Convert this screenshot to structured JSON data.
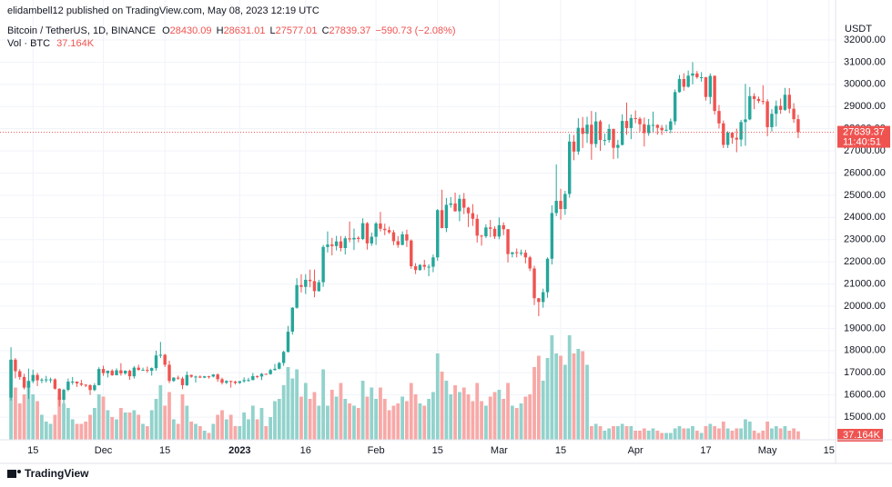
{
  "chart_data": {
    "type": "candlestick",
    "publisher_line": "elidambell12 published on TradingView.com, May 08, 2023 12:19 UTC",
    "symbol": "Bitcoin / TetherUS, 1D, BINANCE",
    "ohlc_keys": [
      "O",
      "H",
      "L",
      "C"
    ],
    "change": {
      "value": -590.73,
      "label": "−590.73"
    },
    "change_pct": {
      "value": -2.08,
      "label": "(−2.08%)"
    },
    "volume_name": "Vol · BTC",
    "last_volume_label": "37.164K",
    "currency": "USDT",
    "countdown": "11:40:51",
    "brand": "TradingView",
    "up_color": "#26a69a",
    "down_color": "#ef5350",
    "up_volume_color": "#92d2cc",
    "down_volume_color": "#f7a9a7",
    "grid": true,
    "ylim": [
      13980,
      32900
    ],
    "yticks": [
      {
        "value": 15000,
        "label": "15000.00"
      },
      {
        "value": 16000,
        "label": "16000.00"
      },
      {
        "value": 17000,
        "label": "17000.00"
      },
      {
        "value": 18000,
        "label": "18000.00"
      },
      {
        "value": 19000,
        "label": "19000.00"
      },
      {
        "value": 20000,
        "label": "20000.00"
      },
      {
        "value": 21000,
        "label": "21000.00"
      },
      {
        "value": 22000,
        "label": "22000.00"
      },
      {
        "value": 23000,
        "label": "23000.00"
      },
      {
        "value": 24000,
        "label": "24000.00"
      },
      {
        "value": 25000,
        "label": "25000.00"
      },
      {
        "value": 26000,
        "label": "26000.00"
      },
      {
        "value": 27000,
        "label": "27000.00"
      },
      {
        "value": 28000,
        "label": "28000.00"
      },
      {
        "value": 29000,
        "label": "29000.00"
      },
      {
        "value": 30000,
        "label": "30000.00"
      },
      {
        "value": 31000,
        "label": "31000.00"
      },
      {
        "value": 32000,
        "label": "32000.00"
      }
    ],
    "xlim": [
      -2.5,
      187.5
    ],
    "xticks": [
      {
        "value": 5,
        "label": "15"
      },
      {
        "value": 21,
        "label": "Dec"
      },
      {
        "value": 35,
        "label": "15"
      },
      {
        "value": 52,
        "label": "2023",
        "bold": true
      },
      {
        "value": 67,
        "label": "16"
      },
      {
        "value": 83,
        "label": "Feb"
      },
      {
        "value": 97,
        "label": "15"
      },
      {
        "value": 111,
        "label": "Mar"
      },
      {
        "value": 125,
        "label": "15"
      },
      {
        "value": 142,
        "label": "Apr"
      },
      {
        "value": 158,
        "label": "17"
      },
      {
        "value": 172,
        "label": "May"
      },
      {
        "value": 186,
        "label": "15"
      }
    ],
    "candles": [
      [
        15880,
        18150,
        15750,
        17590
      ],
      [
        17590,
        17660,
        16750,
        17070
      ],
      [
        17070,
        17160,
        16680,
        16810
      ],
      [
        16810,
        16950,
        16250,
        16330
      ],
      [
        16330,
        17190,
        15820,
        16620
      ],
      [
        16620,
        17140,
        16530,
        16900
      ],
      [
        16900,
        17000,
        16400,
        16660
      ],
      [
        16660,
        16760,
        16530,
        16690
      ],
      [
        16690,
        16860,
        16560,
        16700
      ],
      [
        16700,
        16780,
        16540,
        16700
      ],
      [
        16700,
        16750,
        16240,
        16280
      ],
      [
        16280,
        16300,
        15480,
        15780
      ],
      [
        15780,
        16280,
        15620,
        16230
      ],
      [
        16230,
        16740,
        16170,
        16600
      ],
      [
        16600,
        16810,
        16460,
        16600
      ],
      [
        16600,
        16610,
        16360,
        16520
      ],
      [
        16520,
        16680,
        16400,
        16460
      ],
      [
        16460,
        16490,
        16350,
        16440
      ],
      [
        16440,
        16480,
        16000,
        16220
      ],
      [
        16220,
        16530,
        16170,
        16440
      ],
      [
        16440,
        17250,
        16430,
        17170
      ],
      [
        17170,
        17320,
        16860,
        16980
      ],
      [
        16980,
        17100,
        16790,
        17090
      ],
      [
        17090,
        17160,
        16860,
        16890
      ],
      [
        16890,
        17200,
        16880,
        17110
      ],
      [
        17110,
        17430,
        16870,
        16970
      ],
      [
        16970,
        17110,
        16910,
        17090
      ],
      [
        17090,
        17140,
        16680,
        16840
      ],
      [
        16840,
        17300,
        16740,
        17230
      ],
      [
        17230,
        17360,
        17090,
        17130
      ],
      [
        17130,
        17230,
        17120,
        17130
      ],
      [
        17130,
        17280,
        17000,
        17090
      ],
      [
        17090,
        17240,
        16870,
        17210
      ],
      [
        17210,
        18000,
        17090,
        17780
      ],
      [
        17780,
        18390,
        17660,
        17810
      ],
      [
        17810,
        17850,
        17260,
        17360
      ],
      [
        17360,
        17540,
        16530,
        16630
      ],
      [
        16630,
        16800,
        16590,
        16780
      ],
      [
        16780,
        16870,
        16680,
        16740
      ],
      [
        16740,
        16820,
        16260,
        16440
      ],
      [
        16440,
        17060,
        16400,
        16900
      ],
      [
        16900,
        16920,
        16770,
        16820
      ],
      [
        16820,
        16870,
        16560,
        16830
      ],
      [
        16830,
        16880,
        16760,
        16780
      ],
      [
        16780,
        16860,
        16760,
        16840
      ],
      [
        16840,
        16860,
        16740,
        16830
      ],
      [
        16830,
        16940,
        16790,
        16920
      ],
      [
        16920,
        16970,
        16590,
        16710
      ],
      [
        16710,
        16780,
        16470,
        16550
      ],
      [
        16550,
        16660,
        16490,
        16630
      ],
      [
        16630,
        16640,
        16330,
        16600
      ],
      [
        16600,
        16640,
        16470,
        16540
      ],
      [
        16540,
        16630,
        16500,
        16620
      ],
      [
        16620,
        16790,
        16550,
        16670
      ],
      [
        16670,
        16770,
        16600,
        16670
      ],
      [
        16670,
        16990,
        16660,
        16850
      ],
      [
        16850,
        16880,
        16750,
        16830
      ],
      [
        16830,
        16990,
        16670,
        16950
      ],
      [
        16950,
        16960,
        16910,
        16940
      ],
      [
        16940,
        17180,
        16910,
        17120
      ],
      [
        17120,
        17400,
        17100,
        17180
      ],
      [
        17180,
        17490,
        17150,
        17440
      ],
      [
        17440,
        17990,
        17310,
        17940
      ],
      [
        17940,
        19110,
        17910,
        18850
      ],
      [
        18850,
        19960,
        18720,
        19930
      ],
      [
        19930,
        21260,
        19890,
        20950
      ],
      [
        20950,
        21440,
        20620,
        20870
      ],
      [
        20870,
        21440,
        20550,
        21190
      ],
      [
        21190,
        21650,
        20850,
        21130
      ],
      [
        21130,
        21650,
        20400,
        20680
      ],
      [
        20680,
        21190,
        20650,
        21080
      ],
      [
        21080,
        22760,
        20870,
        22670
      ],
      [
        22670,
        23370,
        22420,
        22780
      ],
      [
        22780,
        23080,
        22290,
        22710
      ],
      [
        22710,
        23170,
        22510,
        22920
      ],
      [
        22920,
        23160,
        22470,
        22620
      ],
      [
        22620,
        23160,
        22330,
        23060
      ],
      [
        23060,
        23820,
        22880,
        23010
      ],
      [
        23010,
        23500,
        22530,
        23080
      ],
      [
        23080,
        23160,
        22880,
        23030
      ],
      [
        23030,
        23960,
        22980,
        23740
      ],
      [
        23740,
        23790,
        22550,
        22830
      ],
      [
        22830,
        23320,
        22720,
        23130
      ],
      [
        23130,
        23800,
        22760,
        23730
      ],
      [
        23730,
        24250,
        23370,
        23490
      ],
      [
        23490,
        23720,
        23200,
        23430
      ],
      [
        23430,
        23590,
        23260,
        23330
      ],
      [
        23330,
        23440,
        22750,
        22930
      ],
      [
        22930,
        23160,
        22630,
        22760
      ],
      [
        22760,
        23370,
        22750,
        23240
      ],
      [
        23240,
        23450,
        22670,
        22960
      ],
      [
        22960,
        23010,
        21690,
        21800
      ],
      [
        21800,
        21940,
        21450,
        21630
      ],
      [
        21630,
        21900,
        21600,
        21860
      ],
      [
        21860,
        22090,
        21630,
        21780
      ],
      [
        21780,
        21890,
        21350,
        21780
      ],
      [
        21780,
        22330,
        21530,
        22200
      ],
      [
        22200,
        24380,
        22050,
        24330
      ],
      [
        24330,
        25250,
        23510,
        23520
      ],
      [
        23520,
        24880,
        23340,
        24570
      ],
      [
        24570,
        24920,
        24440,
        24630
      ],
      [
        24630,
        25120,
        24260,
        24280
      ],
      [
        24280,
        25020,
        23830,
        24840
      ],
      [
        24840,
        25100,
        24150,
        24440
      ],
      [
        24440,
        24480,
        23570,
        24190
      ],
      [
        24190,
        24600,
        23620,
        23940
      ],
      [
        23940,
        24130,
        22870,
        23180
      ],
      [
        23180,
        23220,
        22730,
        23150
      ],
      [
        23150,
        23690,
        23070,
        23550
      ],
      [
        23550,
        23890,
        23110,
        23490
      ],
      [
        23490,
        23600,
        23030,
        23140
      ],
      [
        23140,
        24000,
        23020,
        23650
      ],
      [
        23650,
        23780,
        23200,
        23470
      ],
      [
        23470,
        23480,
        21970,
        22350
      ],
      [
        22350,
        22440,
        22200,
        22430
      ],
      [
        22430,
        22600,
        22200,
        22410
      ],
      [
        22410,
        22550,
        22280,
        22410
      ],
      [
        22410,
        22540,
        21930,
        22200
      ],
      [
        22200,
        22270,
        21580,
        21700
      ],
      [
        21700,
        21820,
        20050,
        20360
      ],
      [
        20360,
        20370,
        19550,
        20190
      ],
      [
        20190,
        20790,
        19930,
        20630
      ],
      [
        20630,
        22200,
        20380,
        22140
      ],
      [
        22140,
        24550,
        21880,
        24200
      ],
      [
        24200,
        26390,
        24060,
        24750
      ],
      [
        24750,
        25290,
        23900,
        24380
      ],
      [
        24380,
        25200,
        24120,
        25060
      ],
      [
        25060,
        27760,
        24890,
        27420
      ],
      [
        27420,
        27720,
        26580,
        26970
      ],
      [
        26970,
        28470,
        26830,
        28040
      ],
      [
        28040,
        28530,
        27130,
        27770
      ],
      [
        27770,
        28540,
        27360,
        28180
      ],
      [
        28180,
        28800,
        26600,
        27310
      ],
      [
        27310,
        28750,
        27150,
        28330
      ],
      [
        28330,
        28400,
        27000,
        27490
      ],
      [
        27490,
        27780,
        27250,
        27490
      ],
      [
        27490,
        28200,
        27370,
        27990
      ],
      [
        27990,
        28000,
        26630,
        27140
      ],
      [
        27140,
        27500,
        26660,
        27270
      ],
      [
        27270,
        28650,
        27240,
        28350
      ],
      [
        28350,
        29180,
        27720,
        28030
      ],
      [
        28030,
        28640,
        27530,
        28480
      ],
      [
        28480,
        28820,
        28250,
        28450
      ],
      [
        28450,
        28530,
        27870,
        28200
      ],
      [
        28200,
        28500,
        27200,
        27800
      ],
      [
        27800,
        28440,
        27680,
        28170
      ],
      [
        28170,
        28770,
        27810,
        28170
      ],
      [
        28170,
        28200,
        27730,
        28040
      ],
      [
        28040,
        28170,
        27720,
        27930
      ],
      [
        27930,
        28180,
        27880,
        27950
      ],
      [
        27950,
        28460,
        27800,
        28330
      ],
      [
        28330,
        29770,
        28170,
        29650
      ],
      [
        29650,
        30420,
        29620,
        30240
      ],
      [
        30240,
        30500,
        29710,
        29890
      ],
      [
        29890,
        30620,
        29850,
        30390
      ],
      [
        30390,
        31000,
        30000,
        30490
      ],
      [
        30490,
        30600,
        30250,
        30320
      ],
      [
        30320,
        30550,
        30120,
        30320
      ],
      [
        30320,
        30330,
        29270,
        29430
      ],
      [
        29430,
        30490,
        29110,
        30380
      ],
      [
        30380,
        30410,
        28640,
        28800
      ],
      [
        28800,
        29070,
        28010,
        28240
      ],
      [
        28240,
        28370,
        27130,
        27270
      ],
      [
        27270,
        27890,
        27130,
        27820
      ],
      [
        27820,
        27840,
        27320,
        27590
      ],
      [
        27590,
        28000,
        26940,
        27510
      ],
      [
        27510,
        28400,
        27200,
        28300
      ],
      [
        28300,
        30020,
        27230,
        28420
      ],
      [
        28420,
        29880,
        28380,
        29470
      ],
      [
        29470,
        29600,
        28880,
        29340
      ],
      [
        29340,
        29450,
        29150,
        29250
      ],
      [
        29250,
        29960,
        29090,
        29230
      ],
      [
        29230,
        29330,
        27660,
        28070
      ],
      [
        28070,
        28880,
        27870,
        28670
      ],
      [
        28670,
        29270,
        28100,
        29030
      ],
      [
        29030,
        29360,
        28670,
        28850
      ],
      [
        28850,
        29840,
        28800,
        29530
      ],
      [
        29530,
        29830,
        28700,
        28900
      ],
      [
        28900,
        29150,
        28260,
        28430
      ],
      [
        28430.09,
        28631.01,
        27577.01,
        27839.37
      ]
    ],
    "volume": [
      350000,
      230000,
      160000,
      200000,
      260000,
      200000,
      170000,
      110000,
      80000,
      70000,
      110000,
      190000,
      160000,
      140000,
      90000,
      70000,
      70000,
      80000,
      110000,
      140000,
      200000,
      190000,
      130000,
      100000,
      90000,
      140000,
      120000,
      120000,
      130000,
      110000,
      70000,
      60000,
      130000,
      180000,
      240000,
      150000,
      210000,
      90000,
      70000,
      200000,
      150000,
      80000,
      70000,
      60000,
      40000,
      30000,
      70000,
      110000,
      130000,
      90000,
      110000,
      60000,
      60000,
      120000,
      90000,
      150000,
      90000,
      140000,
      60000,
      100000,
      170000,
      180000,
      240000,
      320000,
      270000,
      310000,
      190000,
      250000,
      180000,
      210000,
      150000,
      310000,
      150000,
      220000,
      190000,
      250000,
      180000,
      160000,
      150000,
      140000,
      260000,
      190000,
      230000,
      180000,
      230000,
      180000,
      130000,
      150000,
      160000,
      190000,
      170000,
      250000,
      200000,
      160000,
      150000,
      180000,
      210000,
      380000,
      300000,
      260000,
      200000,
      240000,
      210000,
      230000,
      200000,
      170000,
      250000,
      170000,
      150000,
      190000,
      210000,
      220000,
      180000,
      250000,
      150000,
      140000,
      160000,
      190000,
      200000,
      320000,
      370000,
      260000,
      360000,
      460000,
      380000,
      370000,
      330000,
      460000,
      380000,
      400000,
      390000,
      330000,
      60000,
      70000,
      60000,
      40000,
      50000,
      60000,
      60000,
      70000,
      60000,
      60000,
      40000,
      40000,
      50000,
      40000,
      50000,
      40000,
      30000,
      30000,
      30000,
      50000,
      60000,
      50000,
      50000,
      60000,
      40000,
      30000,
      60000,
      70000,
      60000,
      50000,
      80000,
      50000,
      40000,
      50000,
      50000,
      90000,
      80000,
      40000,
      30000,
      40000,
      80000,
      50000,
      60000,
      50000,
      60000,
      40000,
      50000,
      37164
    ]
  }
}
